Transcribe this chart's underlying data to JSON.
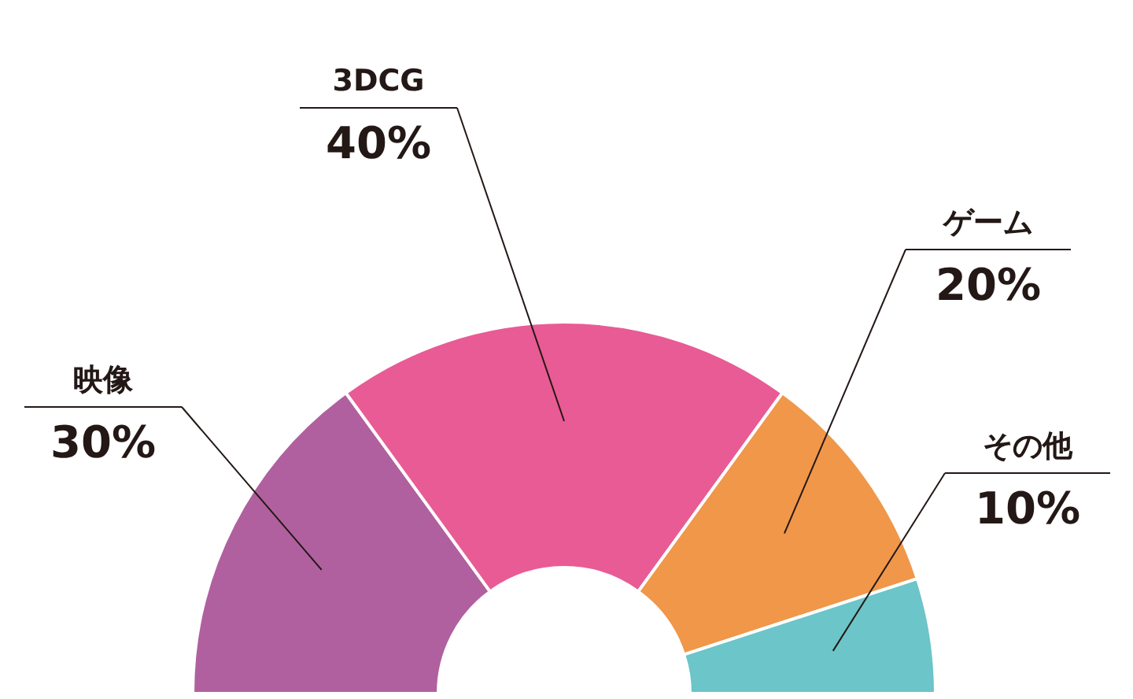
{
  "chart_data": {
    "type": "donut",
    "categories": [
      "映像",
      "3DCG",
      "ゲーム",
      "その他"
    ],
    "values": [
      30,
      40,
      20,
      10
    ],
    "value_labels": [
      "30%",
      "40%",
      "20%",
      "10%"
    ],
    "colors": [
      "#b0609f",
      "#e95b95",
      "#f0974a",
      "#6cc5c8"
    ]
  }
}
